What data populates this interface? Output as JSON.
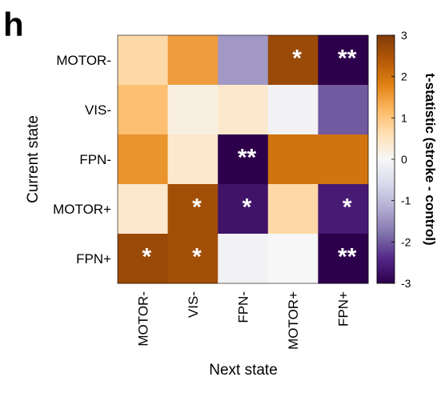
{
  "panel_label": "h",
  "chart_data": {
    "type": "heatmap",
    "rows": [
      "MOTOR-",
      "VIS-",
      "FPN-",
      "MOTOR+",
      "FPN+"
    ],
    "cols": [
      "MOTOR-",
      "VIS-",
      "FPN-",
      "MOTOR+",
      "FPN+"
    ],
    "values": [
      [
        0.7,
        1.5,
        -1.4,
        2.7,
        -3.0
      ],
      [
        1.1,
        0.2,
        0.4,
        -0.1,
        -2.0
      ],
      [
        1.6,
        0.4,
        -3.0,
        2.0,
        2.0
      ],
      [
        0.4,
        2.6,
        -2.7,
        0.7,
        -2.6
      ],
      [
        2.7,
        2.6,
        -0.1,
        0.0,
        -3.0
      ]
    ],
    "annotations": [
      [
        "",
        "",
        "",
        "*",
        "**"
      ],
      [
        "",
        "",
        "",
        "",
        ""
      ],
      [
        "",
        "",
        "**",
        "",
        ""
      ],
      [
        "",
        "*",
        "*",
        "",
        "*"
      ],
      [
        "*",
        "*",
        "",
        "",
        "**"
      ]
    ],
    "xlabel": "Next state",
    "ylabel": "Current state",
    "colorbar": {
      "label": "t-statistic (stroke - control)",
      "range": [
        -3,
        3
      ],
      "ticks": [
        3,
        2,
        1,
        0,
        -1,
        -2,
        -3
      ],
      "colormap": [
        "#2d004b",
        "#542788",
        "#8073ac",
        "#b2abd2",
        "#d8daeb",
        "#f7f7f7",
        "#fee0b6",
        "#fdb863",
        "#e08214",
        "#b35806",
        "#7f3b08"
      ]
    }
  }
}
